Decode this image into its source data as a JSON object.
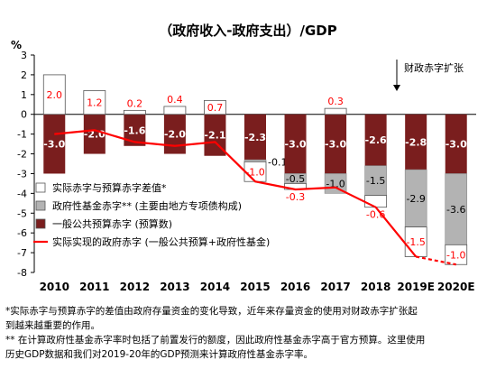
{
  "chart_data": {
    "type": "bar",
    "title": "（政府收入-政府支出）/GDP",
    "ylabel": "%",
    "ylim": [
      -8,
      3
    ],
    "yticks": [
      "3",
      "2",
      "1",
      "0",
      "-1",
      "-2",
      "-3",
      "-4",
      "-5",
      "-6",
      "-7",
      "-8"
    ],
    "categories": [
      "2010",
      "2011",
      "2012",
      "2013",
      "2014",
      "2015",
      "2016",
      "2017",
      "2018",
      "2019E",
      "2020E"
    ],
    "series": [
      {
        "name": "一般公共预算赤字 (预算数)",
        "values": [
          -3.0,
          -2.0,
          -1.6,
          -2.0,
          -2.1,
          -2.3,
          -3.0,
          -3.0,
          -2.6,
          -2.8,
          -3.0
        ],
        "color": "#7a1e1e"
      },
      {
        "name": "政府性基金赤字** (主要由地方专项债构成)",
        "values": [
          null,
          null,
          null,
          null,
          null,
          -0.1,
          -0.5,
          -1.0,
          -1.5,
          -2.9,
          -3.6
        ],
        "color": "#b3b3b3"
      },
      {
        "name": "实际赤字与预算赤字差值*",
        "values": [
          2.0,
          1.2,
          0.2,
          0.4,
          0.7,
          -1.0,
          -0.3,
          0.3,
          -0.6,
          -1.5,
          -1.0
        ],
        "color": "#ffffff"
      },
      {
        "name": "实际实现的政府赤字 (一般公共预算+政府性基金)",
        "values": [
          -1.0,
          -0.8,
          -1.4,
          -1.6,
          -1.4,
          -3.4,
          -3.8,
          -3.7,
          -4.7,
          -7.2,
          -7.6
        ],
        "color": "#ff0000"
      }
    ],
    "bar_labels": {
      "budget": [
        "-3.0",
        "-2.0",
        "-1.6",
        "-2.0",
        "-2.1",
        "-2.3",
        "-3.0",
        "-3.0",
        "-2.6",
        "-2.8",
        "-3.0"
      ],
      "fund": [
        "",
        "",
        "",
        "",
        "",
        "-0.1",
        "-0.5",
        "-1.0",
        "-1.5",
        "-2.9",
        "-3.6"
      ],
      "gap": [
        "2.0",
        "1.2",
        "0.2",
        "0.4",
        "0.7",
        "-1.0",
        "-0.3",
        "0.3",
        "-0.6",
        "-1.5",
        "-1.0"
      ]
    },
    "annotation": "财政赤字扩张",
    "grid": false,
    "legend_position": "bottom-left"
  },
  "notes": [
    "*实际赤字与预算赤字的差值由政府存量资金的变化导致，近年来存量资金的使用对财政赤字扩张起",
    "到越来越重要的作用。",
    "** 在计算政府性基金赤字率时包括了前置发行的额度，因此政府性基金赤字高于官方预算。这里使用",
    "历史GDP数据和我们对2019-20年的GDP预测来计算政府性基金赤字率。"
  ]
}
